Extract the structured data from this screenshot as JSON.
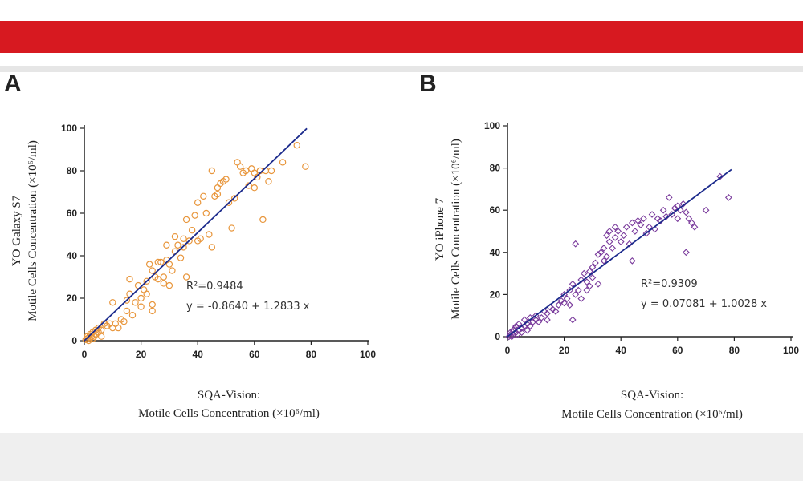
{
  "panels": [
    {
      "label": "A"
    },
    {
      "label": "B"
    }
  ],
  "chart_data": [
    {
      "type": "scatter",
      "ylabel": [
        "YO Galaxy S7",
        "Motile Cells Concentration  (×10⁶/ml)"
      ],
      "xlabel": [
        "SQA-Vision:",
        "Motile Cells Concentration  (×10⁶/ml)"
      ],
      "xlim": [
        0,
        100
      ],
      "ylim": [
        0,
        100
      ],
      "xticks": [
        0,
        20,
        40,
        60,
        80,
        100
      ],
      "yticks": [
        0,
        20,
        40,
        60,
        80,
        100
      ],
      "marker": "circle",
      "marker_color": "#e8963c",
      "line_color": "#1b2a8c",
      "r2_text": "R²=0.9484",
      "equation_text": "y = -0.8640 + 1.2833 x",
      "fit": {
        "intercept": -0.864,
        "slope": 1.2833,
        "x_range": [
          0,
          78.5
        ]
      },
      "points": [
        [
          0.5,
          0.5
        ],
        [
          1,
          2
        ],
        [
          1,
          1
        ],
        [
          1.5,
          0
        ],
        [
          2,
          3
        ],
        [
          2,
          1
        ],
        [
          2.5,
          2
        ],
        [
          3,
          4
        ],
        [
          3,
          1
        ],
        [
          3.5,
          2
        ],
        [
          4,
          5
        ],
        [
          4,
          3
        ],
        [
          5,
          4
        ],
        [
          5,
          6
        ],
        [
          6,
          2
        ],
        [
          6,
          5
        ],
        [
          7,
          8
        ],
        [
          8,
          7
        ],
        [
          9,
          8
        ],
        [
          10,
          6
        ],
        [
          10,
          18
        ],
        [
          11,
          8
        ],
        [
          12,
          6
        ],
        [
          13,
          10
        ],
        [
          14,
          9
        ],
        [
          15,
          14
        ],
        [
          15,
          19
        ],
        [
          16,
          22
        ],
        [
          16,
          29
        ],
        [
          17,
          12
        ],
        [
          18,
          18
        ],
        [
          19,
          26
        ],
        [
          20,
          20
        ],
        [
          20,
          16
        ],
        [
          21,
          24
        ],
        [
          22,
          28
        ],
        [
          22,
          22
        ],
        [
          23,
          36
        ],
        [
          24,
          33
        ],
        [
          24,
          14
        ],
        [
          24,
          17
        ],
        [
          25,
          30
        ],
        [
          26,
          29
        ],
        [
          26,
          37
        ],
        [
          27,
          37
        ],
        [
          28,
          30
        ],
        [
          28,
          27
        ],
        [
          29,
          38
        ],
        [
          29,
          45
        ],
        [
          30,
          36
        ],
        [
          30,
          26
        ],
        [
          31,
          33
        ],
        [
          32,
          49
        ],
        [
          32,
          42
        ],
        [
          33,
          45
        ],
        [
          34,
          39
        ],
        [
          35,
          44
        ],
        [
          35,
          48
        ],
        [
          36,
          30
        ],
        [
          36,
          57
        ],
        [
          37,
          47
        ],
        [
          38,
          52
        ],
        [
          39,
          59
        ],
        [
          40,
          47
        ],
        [
          40,
          65
        ],
        [
          41,
          48
        ],
        [
          42,
          68
        ],
        [
          43,
          60
        ],
        [
          44,
          50
        ],
        [
          45,
          44
        ],
        [
          45,
          80
        ],
        [
          46,
          68
        ],
        [
          47,
          72
        ],
        [
          47,
          69
        ],
        [
          48,
          74
        ],
        [
          49,
          75
        ],
        [
          50,
          76
        ],
        [
          51,
          65
        ],
        [
          52,
          53
        ],
        [
          53,
          67
        ],
        [
          54,
          84
        ],
        [
          55,
          82
        ],
        [
          56,
          79
        ],
        [
          57,
          80
        ],
        [
          58,
          73
        ],
        [
          59,
          81
        ],
        [
          60,
          72
        ],
        [
          60,
          79
        ],
        [
          61,
          77
        ],
        [
          62,
          80
        ],
        [
          63,
          57
        ],
        [
          64,
          80
        ],
        [
          65,
          75
        ],
        [
          66,
          80
        ],
        [
          70,
          84
        ],
        [
          75,
          92
        ],
        [
          78,
          82
        ]
      ]
    },
    {
      "type": "scatter",
      "ylabel": [
        "YO iPhone 7",
        "Motile Cells Concentration  (×10⁶/ml)"
      ],
      "xlabel": [
        "SQA-Vision:",
        "Motile Cells Concentration  (×10⁶/ml)"
      ],
      "xlim": [
        0,
        100
      ],
      "ylim": [
        0,
        100
      ],
      "xticks": [
        0,
        20,
        40,
        60,
        80,
        100
      ],
      "yticks": [
        0,
        20,
        40,
        60,
        80,
        100
      ],
      "marker": "diamond",
      "marker_color": "#7a3b9c",
      "line_color": "#1b2a8c",
      "r2_text": "R²=0.9309",
      "equation_text": "y = 0.07081 + 1.0028 x",
      "fit": {
        "intercept": 0.07081,
        "slope": 1.0028,
        "x_range": [
          0,
          79
        ]
      },
      "points": [
        [
          0.5,
          0
        ],
        [
          1,
          2
        ],
        [
          1,
          1
        ],
        [
          1.5,
          0
        ],
        [
          2,
          3
        ],
        [
          2,
          1
        ],
        [
          2.5,
          4
        ],
        [
          3,
          2
        ],
        [
          3,
          5
        ],
        [
          3.5,
          1
        ],
        [
          4,
          3
        ],
        [
          4,
          6
        ],
        [
          5,
          2
        ],
        [
          5,
          4
        ],
        [
          6,
          5
        ],
        [
          6,
          8
        ],
        [
          7,
          6
        ],
        [
          7,
          3
        ],
        [
          8,
          9
        ],
        [
          8,
          5
        ],
        [
          9,
          7
        ],
        [
          10,
          8
        ],
        [
          10,
          10
        ],
        [
          11,
          7
        ],
        [
          12,
          9
        ],
        [
          13,
          12
        ],
        [
          14,
          11
        ],
        [
          14,
          8
        ],
        [
          15,
          14
        ],
        [
          16,
          13
        ],
        [
          17,
          12
        ],
        [
          18,
          15
        ],
        [
          19,
          17
        ],
        [
          20,
          16
        ],
        [
          20,
          20
        ],
        [
          21,
          18
        ],
        [
          22,
          22
        ],
        [
          22,
          15
        ],
        [
          23,
          25
        ],
        [
          23,
          8
        ],
        [
          24,
          20
        ],
        [
          24,
          44
        ],
        [
          25,
          22
        ],
        [
          26,
          27
        ],
        [
          26,
          18
        ],
        [
          27,
          30
        ],
        [
          28,
          22
        ],
        [
          28,
          26
        ],
        [
          29,
          31
        ],
        [
          29,
          24
        ],
        [
          30,
          33
        ],
        [
          30,
          28
        ],
        [
          31,
          35
        ],
        [
          32,
          25
        ],
        [
          32,
          39
        ],
        [
          33,
          40
        ],
        [
          34,
          36
        ],
        [
          34,
          42
        ],
        [
          35,
          38
        ],
        [
          35,
          48
        ],
        [
          36,
          45
        ],
        [
          36,
          50
        ],
        [
          37,
          42
        ],
        [
          38,
          47
        ],
        [
          38,
          52
        ],
        [
          39,
          50
        ],
        [
          40,
          45
        ],
        [
          41,
          48
        ],
        [
          42,
          52
        ],
        [
          43,
          44
        ],
        [
          44,
          54
        ],
        [
          44,
          36
        ],
        [
          45,
          50
        ],
        [
          46,
          55
        ],
        [
          47,
          53
        ],
        [
          48,
          56
        ],
        [
          49,
          49
        ],
        [
          50,
          52
        ],
        [
          51,
          58
        ],
        [
          52,
          51
        ],
        [
          53,
          56
        ],
        [
          54,
          55
        ],
        [
          55,
          60
        ],
        [
          56,
          57
        ],
        [
          57,
          66
        ],
        [
          58,
          58
        ],
        [
          59,
          61
        ],
        [
          60,
          56
        ],
        [
          60,
          62
        ],
        [
          61,
          60
        ],
        [
          62,
          63
        ],
        [
          63,
          40
        ],
        [
          63,
          59
        ],
        [
          64,
          56
        ],
        [
          65,
          54
        ],
        [
          66,
          52
        ],
        [
          70,
          60
        ],
        [
          75,
          76
        ],
        [
          78,
          66
        ]
      ]
    }
  ]
}
